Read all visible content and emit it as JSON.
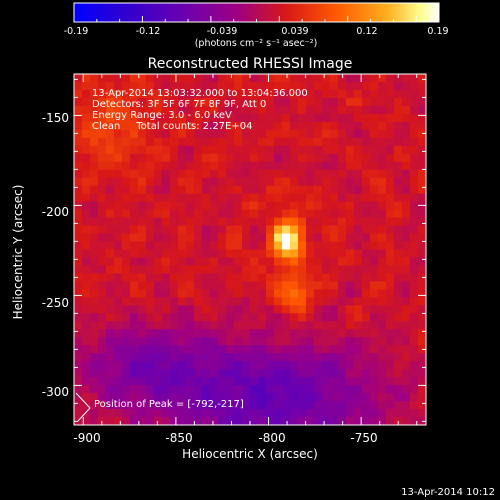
{
  "colorbar": {
    "tick_labels": [
      "-0.19",
      "-0.12",
      "-0.039",
      "0.039",
      "0.12",
      "0.19"
    ],
    "units": "(photons cm⁻² s⁻¹ asec⁻²)"
  },
  "plot": {
    "title": "Reconstructed RHESSI Image",
    "xlabel": "Heliocentric X (arcsec)",
    "ylabel": "Heliocentric Y (arcsec)",
    "x_tick_labels": [
      "-900",
      "-850",
      "-800",
      "-750"
    ],
    "y_tick_labels": [
      "-150",
      "-200",
      "-250",
      "-300"
    ]
  },
  "annotations": {
    "time_range": "13-Apr-2014 13:03:32.000 to 13:04:36.000",
    "detectors": "Detectors: 3F 5F 6F 7F 8F 9F, Att 0",
    "energy": "Energy Range: 3.0 - 6.0 keV",
    "method_counts": "Clean     Total counts: 2.27E+04",
    "peak": "Position of Peak = [-792,-217]"
  },
  "footer": {
    "timestamp": "13-Apr-2014 10:12"
  },
  "colors": {
    "background": "#000000",
    "colormap": [
      "#0000ff",
      "#4b00a0",
      "#9000b0",
      "#d01040",
      "#ff4a00",
      "#ffa020",
      "#ffff80",
      "#ffffff"
    ]
  },
  "image_data": {
    "x_range": [
      -905,
      -715
    ],
    "y_range": [
      -322,
      -127
    ],
    "value_range": [
      -0.19,
      0.19
    ],
    "peak": [
      -792,
      -217
    ]
  }
}
